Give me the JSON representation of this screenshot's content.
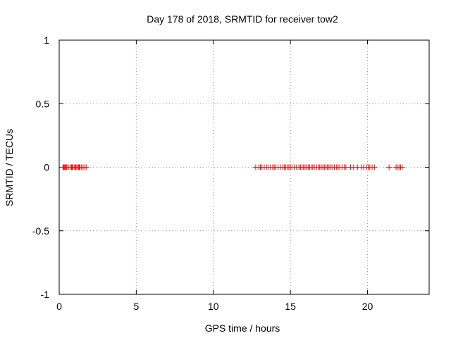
{
  "chart_data": {
    "type": "scatter",
    "title": "Day 178 of 2018, SRMTID for receiver tow2",
    "xlabel": "GPS time / hours",
    "ylabel": "SRMTID / TECUs",
    "xlim": [
      0,
      24
    ],
    "ylim": [
      -1,
      1
    ],
    "x_ticks": [
      0,
      5,
      10,
      15,
      20
    ],
    "y_ticks": [
      -1,
      -0.5,
      0,
      0.5,
      1
    ],
    "x_tick_labels": [
      "0",
      "5",
      "10",
      "15",
      "20"
    ],
    "y_tick_labels": [
      "-1",
      "-0.5",
      "0",
      "0.5",
      "1"
    ],
    "grid": true,
    "marker": "+",
    "series": [
      {
        "color": "#ff0000",
        "x": [
          0.25,
          0.3,
          0.35,
          0.4,
          0.45,
          0.5,
          0.6,
          0.7,
          0.8,
          0.85,
          0.9,
          1.0,
          1.05,
          1.1,
          1.2,
          1.25,
          1.3,
          1.35,
          1.45,
          1.55,
          1.65,
          1.75,
          12.75,
          12.95,
          13.05,
          13.15,
          13.3,
          13.45,
          13.55,
          13.7,
          13.85,
          13.95,
          14.05,
          14.2,
          14.35,
          14.5,
          14.6,
          14.7,
          14.8,
          14.9,
          15.0,
          15.1,
          15.25,
          15.4,
          15.55,
          15.65,
          15.75,
          15.85,
          15.95,
          16.05,
          16.15,
          16.25,
          16.35,
          16.45,
          16.55,
          16.7,
          16.8,
          16.9,
          17.0,
          17.1,
          17.2,
          17.3,
          17.4,
          17.5,
          17.6,
          17.7,
          17.85,
          18.0,
          18.1,
          18.2,
          18.35,
          18.5,
          18.6,
          18.9,
          19.1,
          19.35,
          19.6,
          19.75,
          19.95,
          20.05,
          20.15,
          20.3,
          20.45,
          21.4,
          21.85,
          21.95,
          22.05,
          22.15,
          22.25
        ],
        "y": [
          0,
          0,
          0,
          0,
          0,
          0,
          0,
          0,
          0,
          0,
          0,
          0,
          0,
          0,
          0,
          0,
          0,
          0,
          0,
          0,
          0,
          0,
          0,
          0,
          0,
          0,
          0,
          0,
          0,
          0,
          0,
          0,
          0,
          0,
          0,
          0,
          0,
          0,
          0,
          0,
          0,
          0,
          0,
          0,
          0,
          0,
          0,
          0,
          0,
          0,
          0,
          0,
          0,
          0,
          0,
          0,
          0,
          0,
          0,
          0,
          0,
          0,
          0,
          0,
          0,
          0,
          0,
          0,
          0,
          0,
          0,
          0,
          0,
          0,
          0,
          0,
          0,
          0,
          0,
          0,
          0,
          0,
          0,
          0,
          0,
          0,
          0,
          0,
          0
        ]
      }
    ]
  }
}
